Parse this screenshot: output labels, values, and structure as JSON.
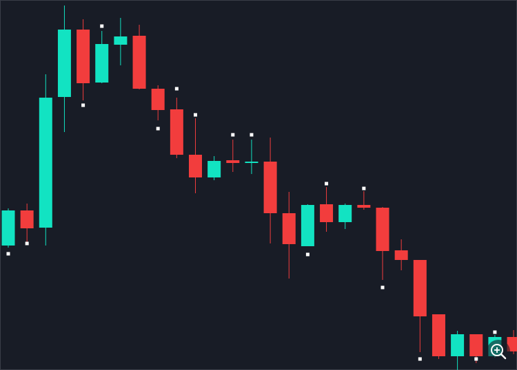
{
  "chart_data": {
    "type": "candlestick",
    "open": [
      181,
      232,
      207,
      397,
      495,
      418,
      473,
      486,
      409,
      379,
      313,
      280,
      305,
      301,
      303,
      228,
      180,
      241,
      215,
      240,
      236,
      174,
      160,
      81,
      20,
      52,
      20,
      48
    ],
    "high": [
      235,
      242,
      430,
      530,
      510,
      493,
      512,
      502,
      414,
      396,
      366,
      311,
      335,
      335,
      338,
      259,
      241,
      266,
      242,
      260,
      237,
      190,
      160,
      81,
      57,
      52,
      51,
      58
    ],
    "low": [
      178,
      186,
      181,
      346,
      392,
      417,
      443,
      408,
      363,
      308,
      257,
      276,
      288,
      285,
      184,
      133,
      180,
      201,
      205,
      233,
      131,
      145,
      26,
      16,
      0,
      10,
      18,
      23
    ],
    "close": [
      232,
      206,
      396,
      495,
      417,
      474,
      485,
      409,
      378,
      313,
      280,
      304,
      301,
      302,
      228,
      183,
      240,
      215,
      240,
      236,
      173,
      160,
      78,
      20,
      52,
      20,
      48,
      27
    ],
    "markers": [
      169,
      184,
      null,
      null,
      385,
      500,
      null,
      null,
      351,
      409,
      371,
      null,
      342,
      342,
      null,
      null,
      168,
      271,
      null,
      264,
      120,
      null,
      16,
      null,
      null,
      16,
      55,
      null
    ],
    "ylim": [
      0,
      538
    ],
    "up_color": "#12e3c2",
    "down_color": "#f23d3d",
    "marker_color": "#ffffff"
  }
}
